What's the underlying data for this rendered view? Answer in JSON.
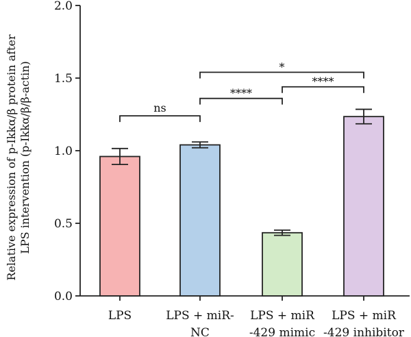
{
  "chart_data": {
    "type": "bar",
    "categories": [
      [
        "LPS"
      ],
      [
        "LPS + miR-",
        "NC"
      ],
      [
        "LPS + miR",
        "-429 mimic"
      ],
      [
        "LPS + miR",
        "-429 inhibitor"
      ]
    ],
    "values": [
      0.96,
      1.04,
      0.435,
      1.235
    ],
    "errors": [
      0.055,
      0.02,
      0.018,
      0.05
    ],
    "colors": [
      "#f7b3b3",
      "#b4d0ea",
      "#d3ebc8",
      "#ddc9e6"
    ],
    "ylabel_lines": [
      "Relative expression of p-Ikkα/β protein after",
      "LPS intervention (p-Ikkα/β/β-actin)"
    ],
    "ylim": [
      0,
      2.0
    ],
    "yticks": [
      "0.0",
      "0.5",
      "1.0",
      "1.5",
      "2.0"
    ],
    "grid": false,
    "significance": [
      {
        "from": 0,
        "to": 1,
        "y": 1.24,
        "label": "ns"
      },
      {
        "from": 1,
        "to": 2,
        "y": 1.36,
        "label": "****"
      },
      {
        "from": 2,
        "to": 3,
        "y": 1.44,
        "label": "****"
      },
      {
        "from": 1,
        "to": 3,
        "y": 1.54,
        "label": "*"
      }
    ]
  }
}
